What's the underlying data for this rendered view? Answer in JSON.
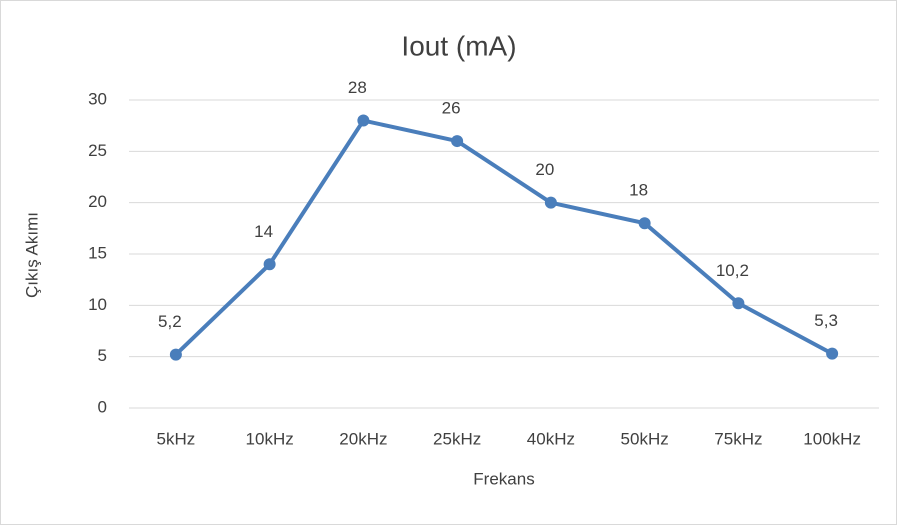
{
  "chart_data": {
    "type": "line",
    "title": "Iout (mA)",
    "x_label": "Frekans",
    "y_label": "Çıkış Akımı",
    "categories": [
      "5kHz",
      "10kHz",
      "20kHz",
      "25kHz",
      "40kHz",
      "50kHz",
      "75kHz",
      "100kHz"
    ],
    "values": [
      5.2,
      14,
      28,
      26,
      20,
      18,
      10.2,
      5.3
    ],
    "value_labels": [
      "5,2",
      "14",
      "28",
      "26",
      "20",
      "18",
      "10,2",
      "5,3"
    ],
    "color": "#4a7ebb",
    "ylim": [
      0,
      30
    ],
    "yticks": [
      0,
      5,
      10,
      15,
      20,
      25,
      30
    ],
    "grid": true
  }
}
